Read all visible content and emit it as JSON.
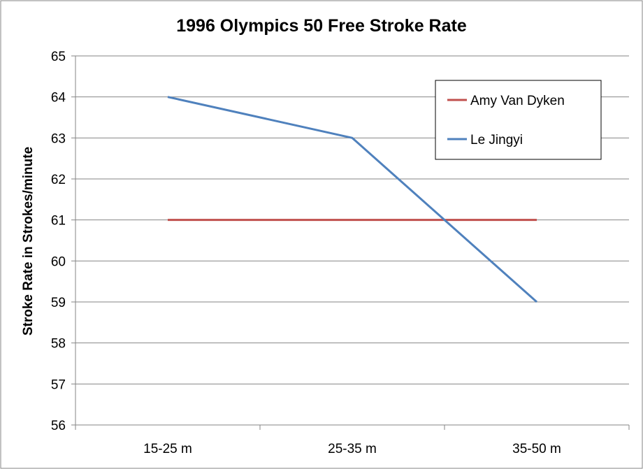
{
  "chart_data": {
    "type": "line",
    "title": "1996 Olympics 50 Free Stroke Rate",
    "xlabel": "",
    "ylabel": "Stroke Rate in Strokes/minute",
    "categories": [
      "15-25 m",
      "25-35 m",
      "35-50 m"
    ],
    "ylim": [
      56,
      65
    ],
    "yticks": [
      56,
      57,
      58,
      59,
      60,
      61,
      62,
      63,
      64,
      65
    ],
    "grid": true,
    "legend_position": "top-right",
    "series": [
      {
        "name": "Amy Van Dyken",
        "color": "#C0504D",
        "values": [
          61,
          61,
          61
        ]
      },
      {
        "name": "Le Jingyi",
        "color": "#4F81BD",
        "values": [
          64,
          63,
          59
        ]
      }
    ]
  }
}
